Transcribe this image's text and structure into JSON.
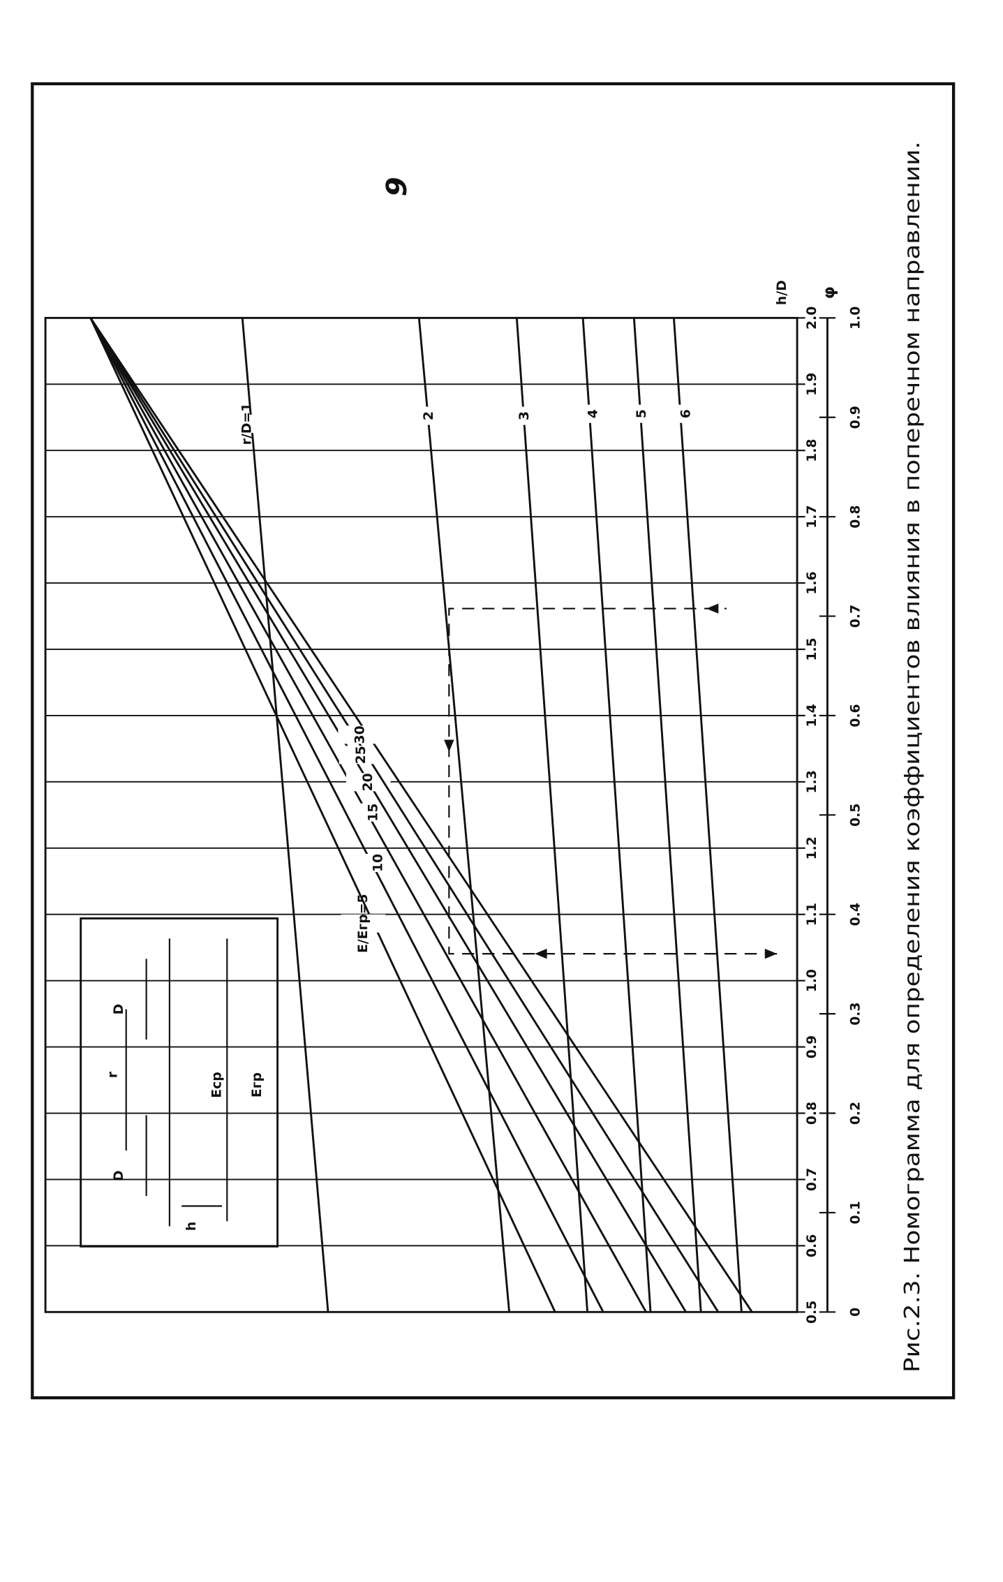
{
  "page_number": "9",
  "caption": "Рис.2.3. Номограмма для определения коэффициентов влияния в поперечном направлении.",
  "inset": {
    "labels": [
      "D",
      "r",
      "D",
      "Eср",
      "Eгр",
      "h"
    ]
  },
  "chart_data": {
    "type": "line",
    "x_label": "h/D",
    "phi_label": "φ",
    "x": [
      0.5,
      2.0
    ],
    "xlim": [
      0.5,
      2.0
    ],
    "ylim": [
      0,
      1
    ],
    "xticks": [
      0.5,
      0.6,
      0.7,
      0.8,
      0.9,
      {
        "value": 1,
        "label": "1.0"
      },
      1.1,
      1.2,
      1.3,
      1.4,
      1.5,
      1.6,
      1.7,
      1.8,
      1.9,
      {
        "value": 2,
        "label": "2.0"
      }
    ],
    "phi_lim": [
      0,
      1
    ],
    "phi_ticks": [
      0,
      0.1,
      0.2,
      0.3,
      0.4,
      0.5,
      0.6,
      0.7,
      0.8,
      0.9,
      {
        "value": 1,
        "label": "1.0"
      }
    ],
    "color": "#111",
    "grid": true,
    "series": [
      {
        "name": "r/D=1",
        "values": [
          0.376,
          0.262
        ]
      },
      {
        "name": "2",
        "values": [
          0.617,
          0.497
        ]
      },
      {
        "name": "3",
        "values": [
          0.721,
          0.627
        ]
      },
      {
        "name": "4",
        "values": [
          0.805,
          0.715
        ]
      },
      {
        "name": "5",
        "values": [
          0.872,
          0.783
        ]
      },
      {
        "name": "6",
        "values": [
          0.926,
          0.836
        ]
      },
      {
        "name": "E/Eгр=5",
        "values": [
          0.678,
          0.06
        ]
      },
      {
        "name": "10",
        "values": [
          0.742,
          0.06
        ]
      },
      {
        "name": "15",
        "values": [
          0.799,
          0.06
        ]
      },
      {
        "name": "20",
        "values": [
          0.852,
          0.06
        ]
      },
      {
        "name": "25",
        "values": [
          0.895,
          0.06
        ]
      },
      {
        "name": "30",
        "values": [
          0.94,
          0.06
        ]
      }
    ]
  }
}
